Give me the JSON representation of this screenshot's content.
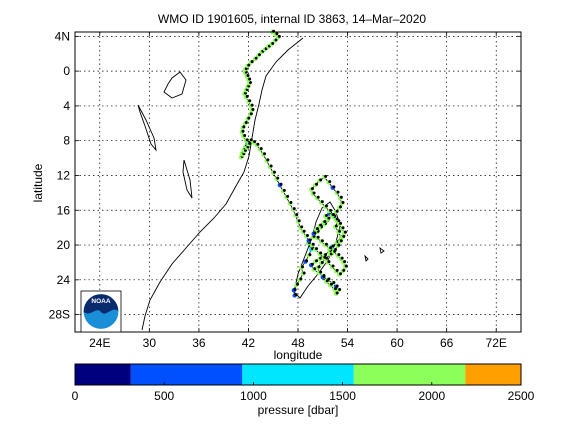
{
  "chart_data": [
    {
      "type": "scatter",
      "title": "WMO ID 1901605, internal ID 3863, 14–Mar–2020",
      "xlabel": "longitude",
      "ylabel": "latitude",
      "xlim": [
        21,
        75
      ],
      "ylim": [
        -30,
        4.5
      ],
      "grid": true,
      "x_ticks": [
        24,
        30,
        36,
        42,
        48,
        54,
        60,
        66,
        72
      ],
      "x_tick_labels": [
        "24E",
        "30",
        "36",
        "42",
        "48",
        "54",
        "60",
        "66",
        "72E"
      ],
      "y_ticks": [
        4,
        0,
        -4,
        -8,
        -12,
        -16,
        -20,
        -24,
        -28
      ],
      "y_tick_labels": [
        "4N",
        "0",
        "4",
        "8",
        "12",
        "16",
        "20",
        "24",
        "28S"
      ],
      "float_track": {
        "lon": [
          47.6,
          47.5,
          47.8,
          48.2,
          48.6,
          48.4,
          48.9,
          49.3,
          49.6,
          49.2,
          49.8,
          50.3,
          50.7,
          51.2,
          51.5,
          51.3,
          51.8,
          52.3,
          52.8,
          52.5,
          52.9,
          53.2,
          52.7,
          52.1,
          51.8,
          51.2,
          50.6,
          50.1,
          49.6,
          49.9,
          50.5,
          51.0,
          51.6,
          52.2,
          52.6,
          52.9,
          52.6,
          52.4,
          51.9,
          51.4,
          51.0,
          50.6,
          50.4,
          50.8,
          51.3,
          51.9,
          52.4,
          52.8,
          53.1,
          53.4,
          53.6,
          53.3,
          53.0,
          52.6,
          52.2,
          51.8,
          51.3,
          50.8,
          50.3,
          49.8,
          49.6,
          50.1,
          50.6,
          51.2,
          51.7,
          52.2,
          52.7,
          53.1,
          53.3,
          53.0,
          52.6,
          52.1,
          51.6,
          51.1,
          50.6,
          50.2,
          49.9,
          50.3,
          50.8,
          51.3,
          51.8,
          52.3,
          52.8,
          53.2,
          53.5,
          53.7,
          53.4,
          53.0,
          52.6,
          52.1,
          51.6,
          51.1,
          50.6,
          50.1,
          49.7,
          49.3,
          49.0,
          48.6,
          48.3,
          48.0,
          47.7,
          47.4,
          47.0,
          46.6,
          46.2,
          45.8,
          45.4,
          45.0,
          44.6,
          44.2,
          43.8,
          43.4,
          43.0,
          42.6,
          42.2,
          41.9,
          41.6,
          41.4,
          41.2,
          41.1,
          41.3,
          41.5,
          41.8,
          42.0,
          41.7,
          41.4,
          41.2,
          41.3,
          41.6,
          41.9,
          42.2,
          42.4,
          42.3,
          42.0,
          41.7,
          41.5,
          41.7,
          41.9,
          42.1,
          42.0,
          41.8,
          41.6,
          41.6,
          41.9,
          42.3,
          42.8,
          43.2,
          43.6,
          44.0,
          44.4,
          44.8,
          45.2,
          45.6,
          45.3,
          44.9
        ],
        "lat": [
          -25.8,
          -25.2,
          -24.6,
          -24.0,
          -23.3,
          -22.6,
          -21.9,
          -21.2,
          -20.5,
          -19.8,
          -19.1,
          -18.5,
          -18.0,
          -17.6,
          -17.2,
          -16.7,
          -16.4,
          -16.8,
          -17.3,
          -17.9,
          -18.5,
          -19.1,
          -19.7,
          -20.2,
          -20.7,
          -21.2,
          -21.6,
          -21.9,
          -22.3,
          -22.8,
          -23.2,
          -23.6,
          -24.0,
          -24.4,
          -24.8,
          -25.2,
          -25.6,
          -25.1,
          -24.6,
          -24.2,
          -23.7,
          -23.2,
          -22.6,
          -22.1,
          -21.6,
          -21.1,
          -20.6,
          -20.1,
          -19.6,
          -19.1,
          -18.6,
          -18.1,
          -17.6,
          -17.1,
          -16.6,
          -16.1,
          -15.6,
          -15.1,
          -14.6,
          -14.1,
          -13.6,
          -13.1,
          -12.6,
          -12.2,
          -12.8,
          -13.4,
          -14.0,
          -14.6,
          -15.2,
          -15.7,
          -16.2,
          -16.6,
          -17.0,
          -17.4,
          -17.8,
          -18.2,
          -18.7,
          -19.2,
          -19.6,
          -20.0,
          -20.4,
          -20.8,
          -21.2,
          -21.6,
          -22.0,
          -22.5,
          -23.0,
          -23.4,
          -23.0,
          -22.5,
          -22.0,
          -21.5,
          -21.0,
          -20.5,
          -20.0,
          -19.5,
          -19.0,
          -18.5,
          -18.0,
          -17.3,
          -16.6,
          -15.9,
          -15.2,
          -14.5,
          -13.8,
          -13.1,
          -12.4,
          -11.7,
          -11.0,
          -10.3,
          -9.6,
          -9.0,
          -8.5,
          -8.2,
          -8.0,
          -8.3,
          -8.7,
          -9.1,
          -9.5,
          -9.9,
          -9.6,
          -9.2,
          -8.8,
          -8.4,
          -8.0,
          -7.5,
          -7.0,
          -6.5,
          -6.0,
          -5.5,
          -5.0,
          -4.5,
          -4.0,
          -3.5,
          -3.0,
          -2.6,
          -2.2,
          -1.8,
          -1.4,
          -1.0,
          -0.6,
          -0.2,
          0.2,
          0.6,
          1.0,
          1.4,
          1.8,
          2.2,
          2.5,
          2.8,
          3.1,
          3.5,
          3.9,
          4.2,
          4.5
        ],
        "pressure": [
          900,
          800,
          1700,
          1950,
          1800,
          1600,
          900,
          1800,
          950,
          1900,
          1700,
          1600,
          1800,
          1900,
          1700,
          1800,
          900,
          1800,
          2000,
          1700,
          1900,
          1800,
          1700,
          950,
          1600,
          1900,
          1800,
          1700,
          900,
          1800,
          1900,
          1800,
          1700,
          1600,
          800,
          1900,
          1800,
          1700,
          1600,
          1900,
          800,
          1700,
          1800,
          1900,
          1600,
          1700,
          1800,
          1900,
          1700,
          1800,
          1600,
          1900,
          1700,
          1800,
          950,
          1700,
          1800,
          1600,
          1900,
          1700,
          1800,
          1600,
          1900,
          1700,
          1800,
          900,
          1700,
          1800,
          1900,
          1600,
          1700,
          1800,
          1900,
          1600,
          1700,
          1800,
          900,
          1700,
          1900,
          1800,
          1600,
          1700,
          1800,
          1900,
          1700,
          1600,
          1800,
          1900,
          1700,
          1800,
          1600,
          1900,
          1700,
          1800,
          1600,
          900,
          1800,
          1700,
          1900,
          1600,
          1700,
          1800,
          1900,
          1700,
          1800,
          900,
          1600,
          1700,
          1800,
          1900,
          1700,
          1600,
          1800,
          1900,
          1700,
          900,
          1800,
          1600,
          1900,
          1700,
          1800,
          1600,
          1700,
          1700,
          1800,
          1600,
          1900,
          1700,
          1800,
          1700,
          1600,
          1800,
          1700,
          1900,
          1600,
          1700,
          1800,
          1700,
          1600,
          1900,
          1700,
          1800,
          1600,
          1700,
          1800,
          1900,
          1700,
          1600,
          1800,
          1700,
          1900,
          1600,
          1700,
          1800,
          1900
        ]
      }
    },
    {
      "type": "heatmap",
      "role": "colorbar",
      "xlabel": "pressure [dbar]",
      "range": [
        0,
        2500
      ],
      "ticks": [
        0,
        500,
        1000,
        1500,
        2000,
        2500
      ],
      "tick_labels": [
        "0",
        "500",
        "1000",
        "1500",
        "2000",
        "2500"
      ],
      "bins": [
        {
          "from": 0,
          "to": 313,
          "color": "#00007f"
        },
        {
          "from": 313,
          "to": 938,
          "color": "#0050ff"
        },
        {
          "from": 938,
          "to": 1563,
          "color": "#00e6ff"
        },
        {
          "from": 1563,
          "to": 2188,
          "color": "#8cff5a"
        },
        {
          "from": 2188,
          "to": 2500,
          "color": "#ffa000"
        }
      ]
    }
  ],
  "logo": {
    "text": "NOAA",
    "colors": {
      "top": "#0a2a6e",
      "bottom": "#1a8fd8",
      "ring": "#ffffff"
    }
  },
  "colors": {
    "axis": "#000000",
    "coast": "#000000",
    "grid": "#000000",
    "track": "#000000"
  }
}
